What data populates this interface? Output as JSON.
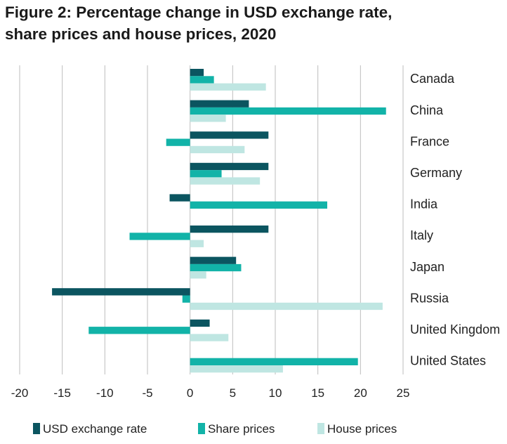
{
  "colors": {
    "usd": "#0b5560",
    "share": "#12b3a8",
    "house": "#bfe6e2",
    "grid": "#bdbdbd"
  },
  "chart_data": {
    "type": "bar",
    "orientation": "horizontal",
    "title_lines": [
      "Figure 2: Percentage change in USD exchange rate,",
      "share prices and house prices, 2020"
    ],
    "categories": [
      "Canada",
      "China",
      "France",
      "Germany",
      "India",
      "Italy",
      "Japan",
      "Russia",
      "United Kingdom",
      "United States"
    ],
    "series": [
      {
        "name": "USD exchange rate",
        "values": [
          1.6,
          6.9,
          9.2,
          9.2,
          -2.4,
          9.2,
          5.4,
          -16.2,
          2.3,
          0.0
        ]
      },
      {
        "name": "Share prices",
        "values": [
          2.8,
          23.0,
          -2.8,
          3.7,
          16.1,
          -7.1,
          6.0,
          -0.9,
          -11.9,
          19.7
        ]
      },
      {
        "name": "House prices",
        "values": [
          8.9,
          4.2,
          6.4,
          8.2,
          0.0,
          1.6,
          1.9,
          22.6,
          4.5,
          10.9
        ]
      }
    ],
    "xlim": [
      -20,
      25
    ],
    "xticks": [
      "-20",
      "-15",
      "-10",
      "-5",
      "0",
      "5",
      "10",
      "15",
      "20",
      "25"
    ],
    "grid": true,
    "legend": "bottom"
  }
}
